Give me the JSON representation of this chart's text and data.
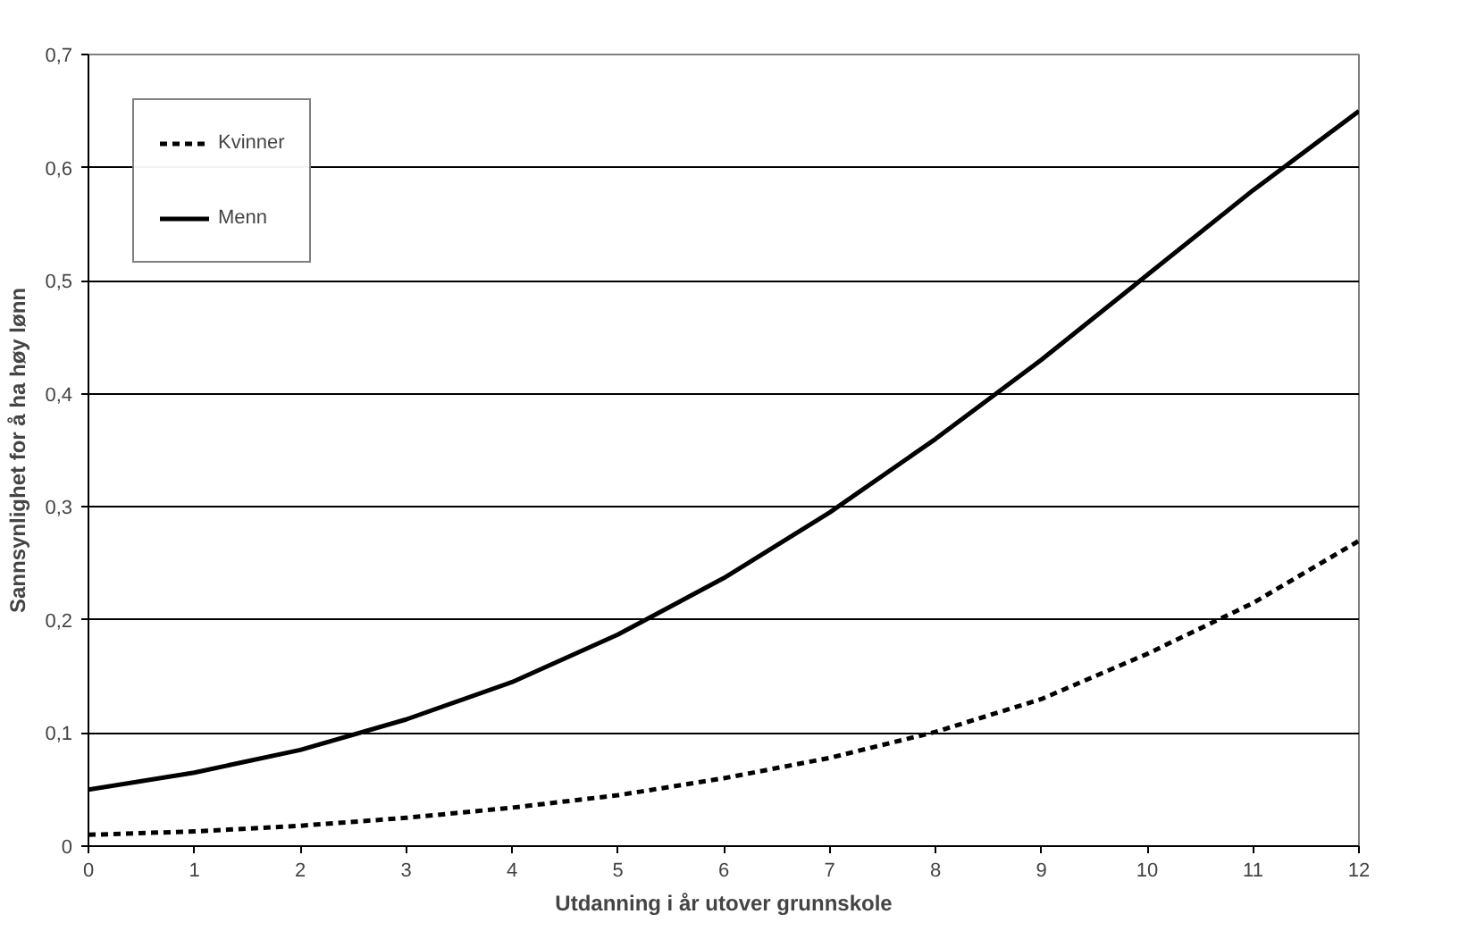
{
  "chart_data": {
    "type": "line",
    "xlabel": "Utdanning i år utover grunnskole",
    "ylabel": "Sannsynlighet for å ha høy lønn",
    "x": [
      0,
      1,
      2,
      3,
      4,
      5,
      6,
      7,
      8,
      9,
      10,
      11,
      12
    ],
    "series": [
      {
        "name": "Kvinner",
        "color": "#000000",
        "line_style": "dashed",
        "values": [
          0.01,
          0.013,
          0.018,
          0.025,
          0.034,
          0.045,
          0.06,
          0.078,
          0.101,
          0.13,
          0.17,
          0.215,
          0.27
        ]
      },
      {
        "name": "Menn",
        "color": "#000000",
        "line_style": "solid",
        "values": [
          0.05,
          0.065,
          0.085,
          0.112,
          0.145,
          0.187,
          0.237,
          0.295,
          0.36,
          0.43,
          0.505,
          0.58,
          0.65
        ]
      }
    ],
    "xlim": [
      0,
      12
    ],
    "ylim": [
      0,
      0.7
    ],
    "xticks": [
      0,
      1,
      2,
      3,
      4,
      5,
      6,
      7,
      8,
      9,
      10,
      11,
      12
    ],
    "yticks": [
      0,
      {
        "value": 0.1,
        "label": "0,1"
      },
      {
        "value": 0.2,
        "label": "0,2"
      },
      {
        "value": 0.3,
        "label": "0,3"
      },
      {
        "value": 0.4,
        "label": "0,4"
      },
      {
        "value": 0.5,
        "label": "0,5"
      },
      {
        "value": 0.6,
        "label": "0,6"
      },
      {
        "value": 0.7,
        "label": "0,7"
      }
    ],
    "grid": "y",
    "legend": "top left",
    "marker": "none"
  }
}
